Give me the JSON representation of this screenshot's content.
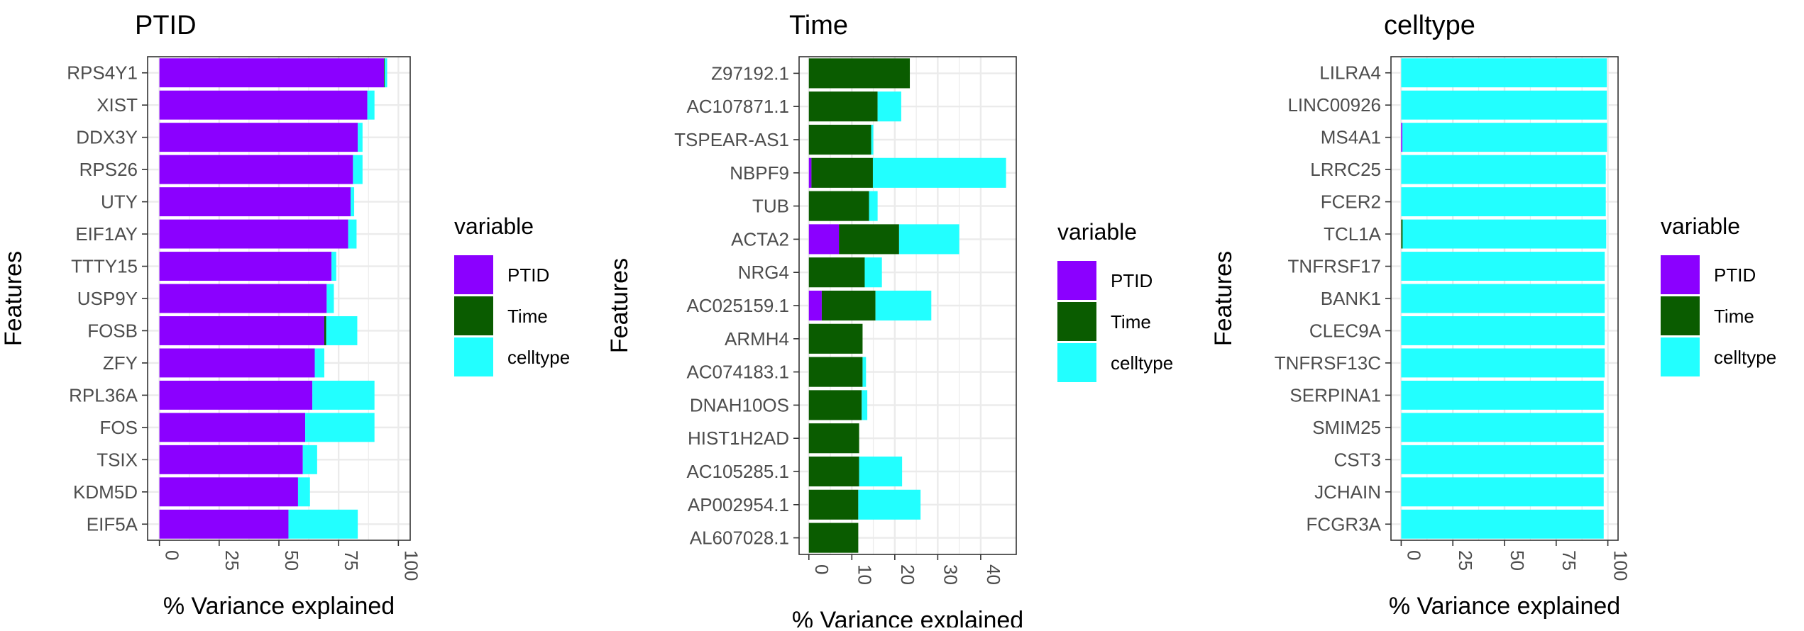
{
  "colors": {
    "PTID": "#8B00FF",
    "Time": "#0A5C00",
    "celltype": "#22FFFF",
    "grid": "#EBEBEB",
    "border": "#333333",
    "text": "#333333"
  },
  "legend": {
    "title": "variable",
    "items": [
      "PTID",
      "Time",
      "celltype"
    ]
  },
  "chart_data": [
    {
      "type": "bar",
      "orientation": "horizontal",
      "stacked": true,
      "title": "PTID",
      "xlabel": "% Variance explained",
      "ylabel": "Features",
      "xlim": [
        0,
        100
      ],
      "xticks": [
        0,
        25,
        50,
        75,
        100
      ],
      "categories": [
        "RPS4Y1",
        "XIST",
        "DDX3Y",
        "RPS26",
        "UTY",
        "EIF1AY",
        "TTTY15",
        "USP9Y",
        "FOSB",
        "ZFY",
        "RPL36A",
        "FOS",
        "TSIX",
        "KDM5D",
        "EIF5A"
      ],
      "series": [
        {
          "name": "PTID",
          "values": [
            94,
            87,
            83,
            81,
            80,
            79,
            72,
            70,
            69,
            65,
            64,
            61,
            60,
            58,
            54
          ]
        },
        {
          "name": "Time",
          "values": [
            0.3,
            0,
            0,
            0,
            0,
            0,
            0,
            0,
            0.8,
            0,
            0,
            0,
            0,
            0,
            0
          ]
        },
        {
          "name": "celltype",
          "values": [
            1,
            3,
            2,
            4,
            1.5,
            3.5,
            2,
            3,
            13,
            4,
            26,
            29,
            6,
            5,
            29
          ]
        }
      ]
    },
    {
      "type": "bar",
      "orientation": "horizontal",
      "stacked": true,
      "title": "Time",
      "xlabel": "% Variance explained",
      "ylabel": "Features",
      "xlim": [
        0,
        46
      ],
      "xticks": [
        0,
        10,
        20,
        30,
        40
      ],
      "categories": [
        "Z97192.1",
        "AC107871.1",
        "TSPEAR-AS1",
        "NBPF9",
        "TUB",
        "ACTA2",
        "NRG4",
        "AC025159.1",
        "ARMH4",
        "AC074183.1",
        "DNAH10OS",
        "HIST1H2AD",
        "AC105285.1",
        "AP002954.1",
        "AL607028.1"
      ],
      "series": [
        {
          "name": "PTID",
          "values": [
            0,
            0,
            0,
            0.6,
            0,
            7,
            0,
            3,
            0,
            0,
            0,
            0,
            0,
            0,
            0
          ]
        },
        {
          "name": "Time",
          "values": [
            23.5,
            16,
            14.5,
            14.3,
            14,
            14,
            13,
            12.5,
            12.5,
            12.5,
            12.3,
            11.7,
            11.7,
            11.5,
            11.5
          ]
        },
        {
          "name": "celltype",
          "values": [
            0,
            5.5,
            0.5,
            31,
            2,
            14,
            4,
            13,
            0,
            0.8,
            1.3,
            0,
            10,
            14.5,
            0
          ]
        }
      ]
    },
    {
      "type": "bar",
      "orientation": "horizontal",
      "stacked": true,
      "title": "celltype",
      "xlabel": "% Variance explained",
      "ylabel": "Features",
      "xlim": [
        0,
        100
      ],
      "xticks": [
        0,
        25,
        50,
        75,
        100
      ],
      "categories": [
        "LILRA4",
        "LINC00926",
        "MS4A1",
        "LRRC25",
        "FCER2",
        "TCL1A",
        "TNFRSF17",
        "BANK1",
        "CLEC9A",
        "TNFRSF13C",
        "SERPINA1",
        "SMIM25",
        "CST3",
        "JCHAIN",
        "FCGR3A"
      ],
      "series": [
        {
          "name": "PTID",
          "values": [
            0,
            0,
            0.6,
            0,
            0,
            0,
            0,
            0,
            0,
            0,
            0,
            0,
            0,
            0,
            0
          ]
        },
        {
          "name": "Time",
          "values": [
            0,
            0,
            0,
            0,
            0,
            0.7,
            0,
            0,
            0,
            0,
            0,
            0,
            0,
            0,
            0
          ]
        },
        {
          "name": "celltype",
          "values": [
            99.5,
            99.5,
            99,
            99,
            99,
            98.5,
            98.5,
            98.5,
            98.5,
            98.5,
            98,
            98,
            98,
            98,
            98
          ]
        }
      ]
    }
  ]
}
